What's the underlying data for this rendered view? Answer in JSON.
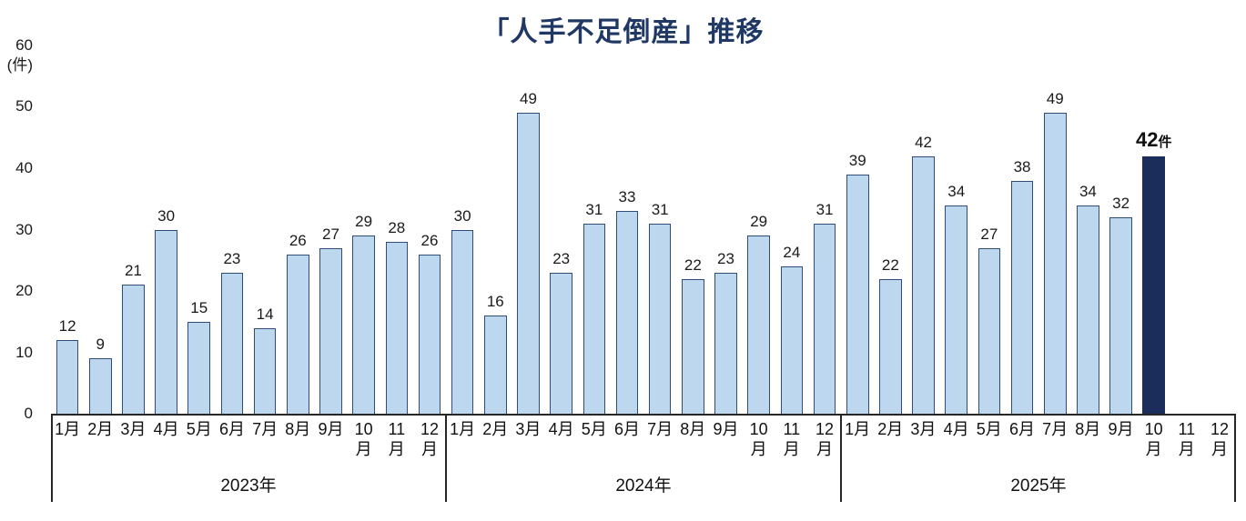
{
  "chart_data": {
    "type": "bar",
    "title": "「人手不足倒産」推移",
    "ylabel": "(件)",
    "xlabel": "",
    "ylim": [
      0,
      60
    ],
    "y_ticks": [
      0,
      10,
      20,
      30,
      40,
      50,
      60
    ],
    "grid": false,
    "legend": null,
    "groups": [
      {
        "year": "2023年",
        "categories": [
          "1月",
          "2月",
          "3月",
          "4月",
          "5月",
          "6月",
          "7月",
          "8月",
          "9月",
          "10月",
          "11月",
          "12月"
        ],
        "values": [
          12,
          9,
          21,
          30,
          15,
          23,
          14,
          26,
          27,
          29,
          28,
          26
        ]
      },
      {
        "year": "2024年",
        "categories": [
          "1月",
          "2月",
          "3月",
          "4月",
          "5月",
          "6月",
          "7月",
          "8月",
          "9月",
          "10月",
          "11月",
          "12月"
        ],
        "values": [
          30,
          16,
          49,
          23,
          31,
          33,
          31,
          22,
          23,
          29,
          24,
          31
        ]
      },
      {
        "year": "2025年",
        "categories": [
          "1月",
          "2月",
          "3月",
          "4月",
          "5月",
          "6月",
          "7月",
          "8月",
          "9月",
          "10月",
          "11月",
          "12月"
        ],
        "values": [
          39,
          22,
          42,
          34,
          27,
          38,
          49,
          34,
          32,
          42,
          null,
          null
        ]
      }
    ],
    "highlight": {
      "group": 2,
      "index": 9,
      "value": 42,
      "label_value": "42",
      "label_unit": "件"
    },
    "colors": {
      "bar_fill": "#BDD7EE",
      "bar_border": "#2E4E79",
      "highlight_fill": "#1B2D5B",
      "title": "#1F3864",
      "axis_line": "#262626"
    }
  }
}
